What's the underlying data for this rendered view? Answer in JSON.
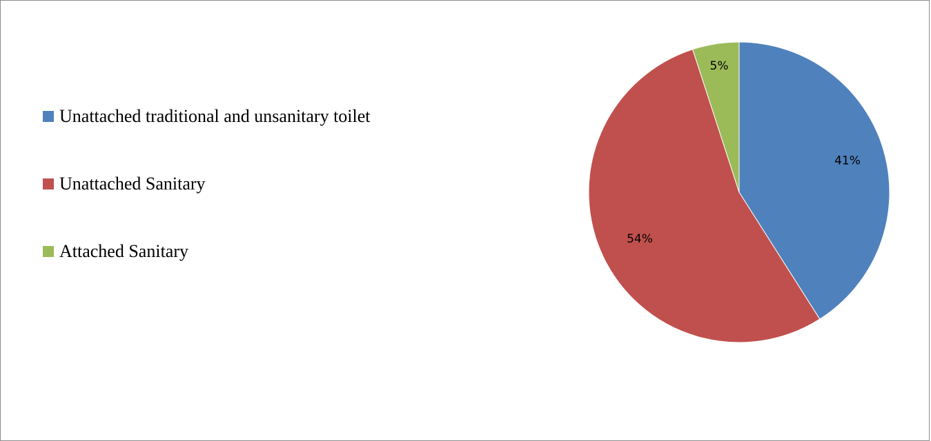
{
  "chart_data": {
    "type": "pie",
    "categories": [
      "Unattached traditional and unsanitary toilet",
      "Unattached Sanitary",
      "Attached Sanitary"
    ],
    "values": [
      41,
      54,
      5
    ],
    "data_labels": [
      "41%",
      "54%",
      "5%"
    ],
    "colors": [
      "#4f81bd",
      "#c0504d",
      "#9bbb59"
    ],
    "start_angle": "12 o'clock",
    "direction": "clockwise",
    "legend_placement": "left"
  }
}
